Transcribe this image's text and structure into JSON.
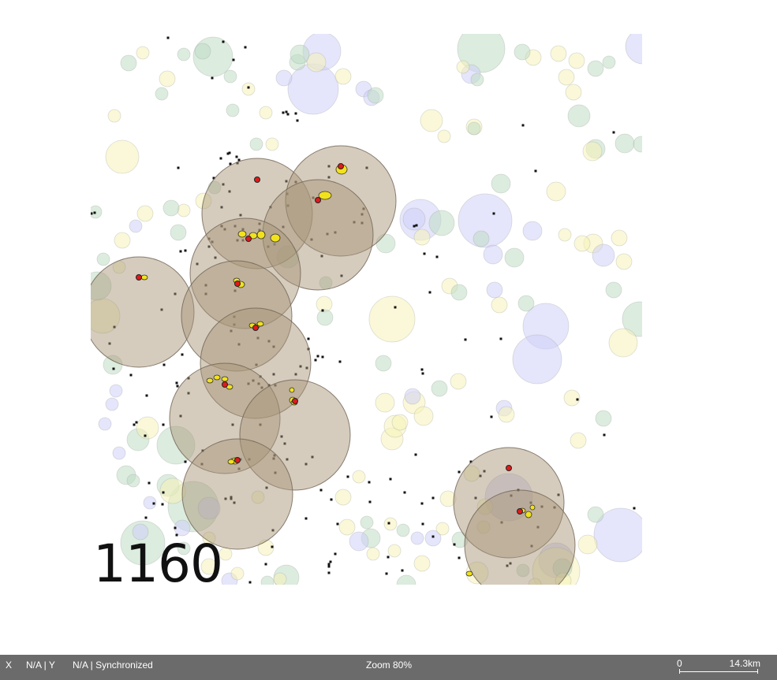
{
  "map": {
    "year": "1160",
    "colors": {
      "region": "#a89478",
      "region_stroke": "#6e6252",
      "site": "#e01a1a",
      "settlement": "#f2e21c",
      "dot": "#111111",
      "green": "#bfdcc4",
      "yellow": "#f6f3b8",
      "blue": "#cfcff7"
    }
  },
  "status_bar": {
    "x_label": "X",
    "x_value": "N/A | Y",
    "y_value": "N/A | Synchronized",
    "zoom": "Zoom 80%",
    "scale_min": "0",
    "scale_max": "14.3km"
  }
}
